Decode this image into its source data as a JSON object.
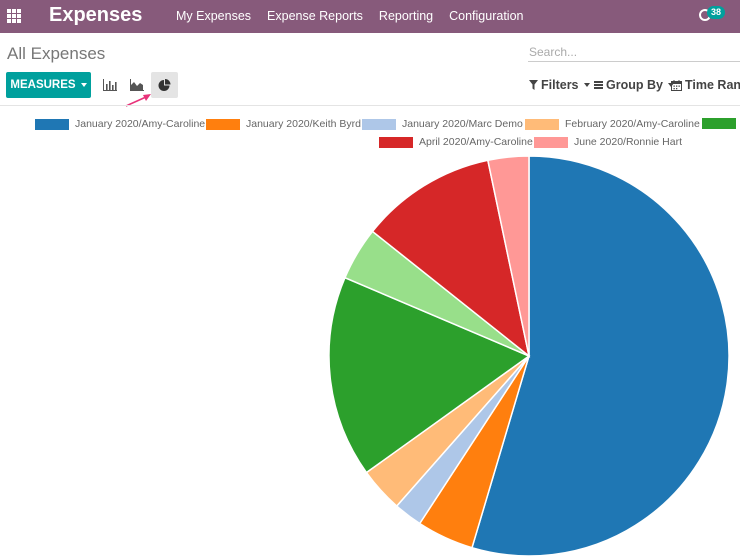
{
  "header": {
    "app_title": "Expenses",
    "menu": [
      "My Expenses",
      "Expense Reports",
      "Reporting",
      "Configuration"
    ],
    "activity_count": "38",
    "apps_icon": "grid-icon",
    "activity_icon": "clock-icon"
  },
  "control": {
    "breadcrumb": "All Expenses",
    "search_placeholder": "Search...",
    "measures_label": "MEASURES",
    "views": [
      {
        "name": "bar-chart",
        "icon": "bar-chart-icon",
        "active": false
      },
      {
        "name": "line-chart",
        "icon": "area-chart-icon",
        "active": false
      },
      {
        "name": "pie-chart",
        "icon": "pie-chart-icon",
        "active": true
      }
    ],
    "filters_label": "Filters",
    "groupby_label": "Group By",
    "timerange_label": "Time Range",
    "filter_icon": "funnel-icon",
    "groupby_icon": "list-icon",
    "timerange_icon": "calendar-icon"
  },
  "colors": {
    "brand": "#875a7b",
    "accent": "#00a09d"
  },
  "chart_data": {
    "type": "pie",
    "legend_position": "top",
    "series": [
      {
        "name": "January 2020/Amy-Caroline",
        "value": 54.6,
        "color": "#1f77b4"
      },
      {
        "name": "January 2020/Keith Byrd",
        "value": 4.6,
        "color": "#ff7f0e"
      },
      {
        "name": "January 2020/Marc Demo",
        "value": 2.3,
        "color": "#aec7e8"
      },
      {
        "name": "February 2020/Amy-Caroline",
        "value": 3.6,
        "color": "#ffbb78"
      },
      {
        "name": "",
        "value": 16.3,
        "color": "#2ca02c"
      },
      {
        "name": "",
        "value": 4.3,
        "color": "#98df8a"
      },
      {
        "name": "April 2020/Amy-Caroline",
        "value": 11.0,
        "color": "#d62728"
      },
      {
        "name": "June 2020/Ronnie Hart",
        "value": 3.3,
        "color": "#ff9896"
      }
    ]
  }
}
